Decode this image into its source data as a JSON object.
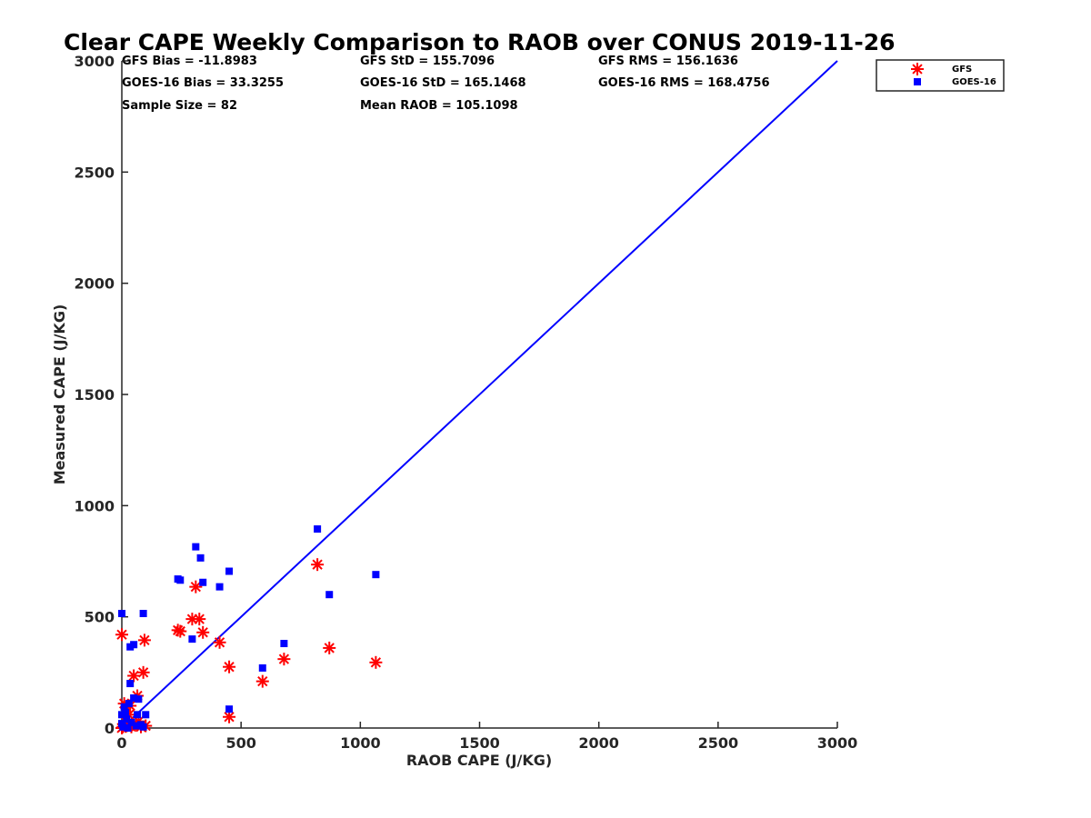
{
  "chart_data": {
    "type": "scatter",
    "title": "Clear CAPE Weekly Comparison to RAOB over CONUS 2019-11-26",
    "xlabel": "RAOB CAPE (J/KG)",
    "ylabel": "Measured CAPE (J/KG)",
    "xlim": [
      0,
      3000
    ],
    "ylim": [
      0,
      3000
    ],
    "x_ticks": [
      "0",
      "500",
      "1000",
      "1500",
      "2000",
      "2500",
      "3000"
    ],
    "y_ticks": [
      "0",
      "500",
      "1000",
      "1500",
      "2000",
      "2500",
      "3000"
    ],
    "grid": false,
    "legend_position": "top-right",
    "stats": {
      "gfs_bias": "GFS Bias = -11.8983",
      "gfs_std": "GFS StD = 155.7096",
      "gfs_rms": "GFS RMS = 156.1636",
      "goes_bias": "GOES-16 Bias = 33.3255",
      "goes_std": "GOES-16 StD = 165.1468",
      "goes_rms": "GOES-16 RMS = 168.4756",
      "sample_size": "Sample Size = 82",
      "mean_raob": "Mean RAOB = 105.1098"
    },
    "reference_line": {
      "x": [
        0,
        3000
      ],
      "y": [
        0,
        3000
      ],
      "color": "#0000ff"
    },
    "series": [
      {
        "name": "GFS",
        "marker": "asterisk",
        "color": "#ff0000",
        "points": [
          [
            0,
            420
          ],
          [
            310,
            635
          ],
          [
            820,
            735
          ],
          [
            295,
            490
          ],
          [
            325,
            490
          ],
          [
            235,
            440
          ],
          [
            245,
            435
          ],
          [
            340,
            430
          ],
          [
            410,
            385
          ],
          [
            95,
            395
          ],
          [
            870,
            360
          ],
          [
            1065,
            295
          ],
          [
            680,
            310
          ],
          [
            450,
            275
          ],
          [
            590,
            210
          ],
          [
            90,
            250
          ],
          [
            50,
            235
          ],
          [
            65,
            145
          ],
          [
            35,
            100
          ],
          [
            10,
            110
          ],
          [
            30,
            60
          ],
          [
            70,
            30
          ],
          [
            100,
            10
          ],
          [
            60,
            20
          ],
          [
            20,
            10
          ],
          [
            5,
            5
          ],
          [
            0,
            0
          ],
          [
            40,
            5
          ],
          [
            80,
            5
          ],
          [
            450,
            50
          ],
          [
            15,
            30
          ],
          [
            45,
            15
          ]
        ]
      },
      {
        "name": "GOES-16",
        "marker": "square",
        "color": "#0000ff",
        "points": [
          [
            820,
            895
          ],
          [
            310,
            815
          ],
          [
            330,
            765
          ],
          [
            1065,
            690
          ],
          [
            450,
            705
          ],
          [
            235,
            670
          ],
          [
            245,
            665
          ],
          [
            340,
            655
          ],
          [
            410,
            635
          ],
          [
            870,
            600
          ],
          [
            0,
            515
          ],
          [
            90,
            515
          ],
          [
            295,
            400
          ],
          [
            680,
            380
          ],
          [
            50,
            375
          ],
          [
            35,
            365
          ],
          [
            590,
            270
          ],
          [
            35,
            200
          ],
          [
            50,
            135
          ],
          [
            70,
            130
          ],
          [
            10,
            95
          ],
          [
            30,
            110
          ],
          [
            450,
            85
          ],
          [
            100,
            60
          ],
          [
            65,
            60
          ],
          [
            20,
            40
          ],
          [
            40,
            25
          ],
          [
            80,
            15
          ],
          [
            5,
            5
          ],
          [
            0,
            60
          ],
          [
            15,
            70
          ],
          [
            60,
            10
          ],
          [
            25,
            0
          ],
          [
            0,
            20
          ],
          [
            90,
            5
          ]
        ]
      }
    ]
  }
}
